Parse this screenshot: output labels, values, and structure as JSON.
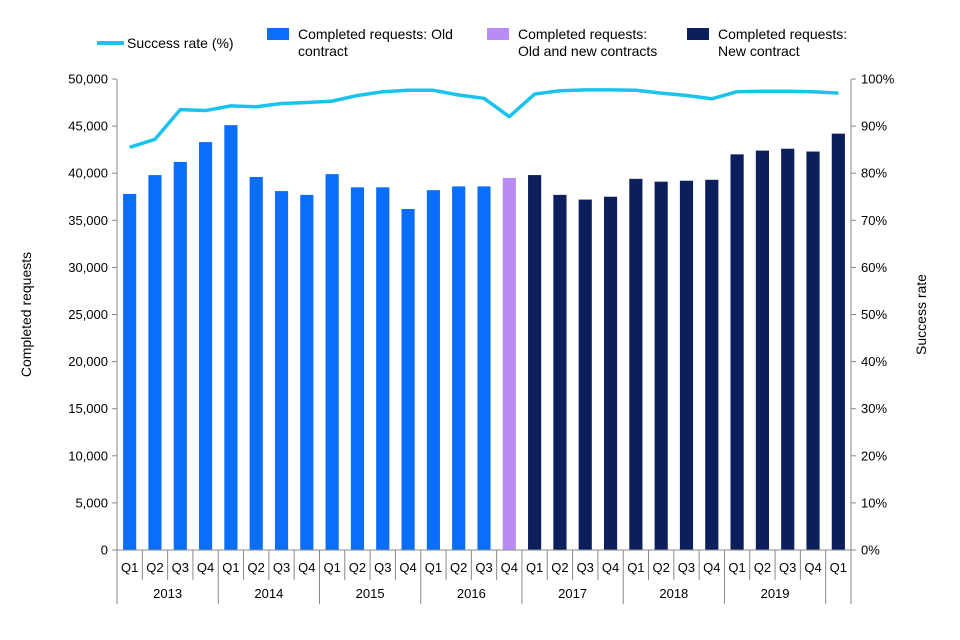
{
  "chart_data": {
    "type": "bar",
    "title": "",
    "categories": [
      "Q1",
      "Q2",
      "Q3",
      "Q4",
      "Q1",
      "Q2",
      "Q3",
      "Q4",
      "Q1",
      "Q2",
      "Q3",
      "Q4",
      "Q1",
      "Q2",
      "Q3",
      "Q4",
      "Q1",
      "Q2",
      "Q3",
      "Q4",
      "Q1",
      "Q2",
      "Q3",
      "Q4",
      "Q1",
      "Q2",
      "Q3",
      "Q4",
      "Q1"
    ],
    "year_groups": [
      {
        "label": "2013",
        "count": 4
      },
      {
        "label": "2014",
        "count": 4
      },
      {
        "label": "2015",
        "count": 4
      },
      {
        "label": "2016",
        "count": 4
      },
      {
        "label": "2017",
        "count": 4
      },
      {
        "label": "2018",
        "count": 4
      },
      {
        "label": "2019",
        "count": 4
      },
      {
        "label": "",
        "count": 1
      }
    ],
    "bars": [
      37800,
      39800,
      41200,
      43300,
      45100,
      39600,
      38100,
      37700,
      39900,
      38500,
      38500,
      36200,
      38200,
      38600,
      38600,
      39500,
      39800,
      37700,
      37200,
      37500,
      39400,
      39100,
      39200,
      39300,
      42000,
      42400,
      42600,
      42300,
      44200
    ],
    "bar_series_index": [
      0,
      0,
      0,
      0,
      0,
      0,
      0,
      0,
      0,
      0,
      0,
      0,
      0,
      0,
      0,
      1,
      2,
      2,
      2,
      2,
      2,
      2,
      2,
      2,
      2,
      2,
      2,
      2,
      2
    ],
    "series": [
      {
        "name": "Completed requests: Old contract",
        "name_lines": [
          "Completed requests: Old",
          "contract"
        ],
        "color": "#0A6EFA",
        "kind": "bar"
      },
      {
        "name": "Completed requests: Old and new contracts",
        "name_lines": [
          "Completed requests:",
          "Old and new contracts"
        ],
        "color": "#B98CF5",
        "kind": "bar"
      },
      {
        "name": "Completed requests: New contract",
        "name_lines": [
          "Completed requests:",
          "New contract"
        ],
        "color": "#0B1F5C",
        "kind": "bar"
      },
      {
        "name": "Success rate (%)",
        "name_lines": [
          "Success rate (%)"
        ],
        "color": "#19C3EB",
        "kind": "line",
        "axis": "right",
        "values": [
          85.5,
          87.2,
          93.5,
          93.3,
          94.3,
          94.1,
          94.8,
          95.0,
          95.3,
          96.5,
          97.3,
          97.6,
          97.6,
          96.6,
          95.9,
          92.0,
          96.8,
          97.5,
          97.7,
          97.7,
          97.6,
          97.0,
          96.5,
          95.8,
          97.3,
          97.4,
          97.4,
          97.3,
          97.0
        ]
      }
    ],
    "ylabel": "Completed requests",
    "ylim": [
      0,
      50000
    ],
    "yticks": [
      "0",
      "5,000",
      "10,000",
      "15,000",
      "20,000",
      "25,000",
      "30,000",
      "35,000",
      "40,000",
      "45,000",
      "50,000"
    ],
    "y2label": "Success rate",
    "y2lim": [
      0,
      100
    ],
    "y2ticks": [
      "0%",
      "10%",
      "20%",
      "30%",
      "40%",
      "50%",
      "60%",
      "70%",
      "80%",
      "90%",
      "100%"
    ],
    "legend_position": "top",
    "grid": false
  }
}
